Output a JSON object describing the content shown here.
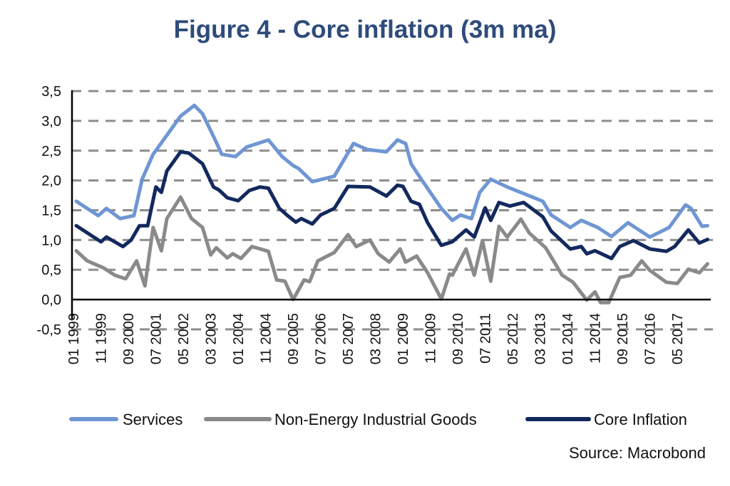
{
  "chart_data": {
    "type": "line",
    "title": "Figure 4 - Core inflation (3m ma)",
    "source": "Source: Macrobond",
    "xlabel": "",
    "ylabel": "",
    "ylim": [
      -0.5,
      3.5
    ],
    "yticks": [
      "3,5",
      "3,0",
      "2,5",
      "2,0",
      "1,5",
      "1,0",
      "0,5",
      "0,0",
      "-0,5"
    ],
    "ytick_values": [
      3.5,
      3.0,
      2.5,
      2.0,
      1.5,
      1.0,
      0.5,
      0.0,
      -0.5
    ],
    "xlim": [
      "1999-01",
      "2018-03"
    ],
    "xticks": [
      {
        "date": "1999-01",
        "label": "01 1999"
      },
      {
        "date": "1999-11",
        "label": "11 1999"
      },
      {
        "date": "2000-09",
        "label": "09 2000"
      },
      {
        "date": "2001-07",
        "label": "07 2001"
      },
      {
        "date": "2002-05",
        "label": "05 2002"
      },
      {
        "date": "2003-03",
        "label": "03 2003"
      },
      {
        "date": "2004-01",
        "label": "01 2004"
      },
      {
        "date": "2004-11",
        "label": "11 2004"
      },
      {
        "date": "2005-09",
        "label": "09 2005"
      },
      {
        "date": "2006-07",
        "label": "07 2006"
      },
      {
        "date": "2007-05",
        "label": "05 2007"
      },
      {
        "date": "2008-03",
        "label": "03 2008"
      },
      {
        "date": "2009-01",
        "label": "01 2009"
      },
      {
        "date": "2009-11",
        "label": "11 2009"
      },
      {
        "date": "2010-09",
        "label": "09 2010"
      },
      {
        "date": "2011-07",
        "label": "07 2011"
      },
      {
        "date": "2012-05",
        "label": "05 2012"
      },
      {
        "date": "2013-03",
        "label": "03 2013"
      },
      {
        "date": "2014-01",
        "label": "01 2014"
      },
      {
        "date": "2014-11",
        "label": "11 2014"
      },
      {
        "date": "2015-09",
        "label": "09 2015"
      },
      {
        "date": "2016-07",
        "label": "07 2016"
      },
      {
        "date": "2017-05",
        "label": "05 2017"
      }
    ],
    "grid": "horizontal dashed",
    "legend_position": "bottom",
    "series": [
      {
        "name": "Services",
        "color": "#6f96d4",
        "points": [
          [
            "1999-01",
            1.65
          ],
          [
            "1999-09",
            1.41
          ],
          [
            "1999-12",
            1.53
          ],
          [
            "2000-05",
            1.36
          ],
          [
            "2000-10",
            1.41
          ],
          [
            "2001-01",
            2.02
          ],
          [
            "2001-05",
            2.44
          ],
          [
            "2001-10",
            2.76
          ],
          [
            "2002-03",
            3.08
          ],
          [
            "2002-08",
            3.26
          ],
          [
            "2002-11",
            3.12
          ],
          [
            "2003-03",
            2.74
          ],
          [
            "2003-06",
            2.44
          ],
          [
            "2003-11",
            2.4
          ],
          [
            "2004-03",
            2.56
          ],
          [
            "2004-11",
            2.68
          ],
          [
            "2005-04",
            2.4
          ],
          [
            "2005-08",
            2.25
          ],
          [
            "2005-10",
            2.2
          ],
          [
            "2006-03",
            1.98
          ],
          [
            "2006-11",
            2.07
          ],
          [
            "2007-06",
            2.62
          ],
          [
            "2007-11",
            2.52
          ],
          [
            "2008-06",
            2.48
          ],
          [
            "2008-10",
            2.68
          ],
          [
            "2009-01",
            2.62
          ],
          [
            "2009-03",
            2.28
          ],
          [
            "2009-07",
            2.0
          ],
          [
            "2010-02",
            1.53
          ],
          [
            "2010-06",
            1.33
          ],
          [
            "2010-09",
            1.42
          ],
          [
            "2011-01",
            1.36
          ],
          [
            "2011-04",
            1.8
          ],
          [
            "2011-08",
            2.02
          ],
          [
            "2012-02",
            1.89
          ],
          [
            "2012-08",
            1.78
          ],
          [
            "2013-03",
            1.65
          ],
          [
            "2013-06",
            1.42
          ],
          [
            "2014-01",
            1.21
          ],
          [
            "2014-05",
            1.33
          ],
          [
            "2014-11",
            1.21
          ],
          [
            "2015-04",
            1.06
          ],
          [
            "2015-10",
            1.29
          ],
          [
            "2016-06",
            1.05
          ],
          [
            "2017-01",
            1.21
          ],
          [
            "2017-07",
            1.59
          ],
          [
            "2017-09",
            1.53
          ],
          [
            "2018-01",
            1.23
          ],
          [
            "2018-03",
            1.24
          ]
        ]
      },
      {
        "name": "Non-Energy Industrial Goods",
        "color": "#8a8a8a",
        "points": [
          [
            "1999-01",
            0.82
          ],
          [
            "1999-05",
            0.65
          ],
          [
            "1999-11",
            0.53
          ],
          [
            "2000-03",
            0.41
          ],
          [
            "2000-07",
            0.35
          ],
          [
            "2000-11",
            0.65
          ],
          [
            "2001-02",
            0.23
          ],
          [
            "2001-05",
            1.21
          ],
          [
            "2001-08",
            0.82
          ],
          [
            "2001-10",
            1.36
          ],
          [
            "2002-03",
            1.72
          ],
          [
            "2002-07",
            1.36
          ],
          [
            "2002-11",
            1.21
          ],
          [
            "2003-02",
            0.75
          ],
          [
            "2003-04",
            0.87
          ],
          [
            "2003-08",
            0.7
          ],
          [
            "2003-10",
            0.77
          ],
          [
            "2004-01",
            0.69
          ],
          [
            "2004-05",
            0.89
          ],
          [
            "2004-11",
            0.81
          ],
          [
            "2005-02",
            0.33
          ],
          [
            "2005-05",
            0.31
          ],
          [
            "2005-08",
            0.0
          ],
          [
            "2005-12",
            0.33
          ],
          [
            "2006-02",
            0.3
          ],
          [
            "2006-05",
            0.65
          ],
          [
            "2006-11",
            0.79
          ],
          [
            "2007-04",
            1.09
          ],
          [
            "2007-07",
            0.89
          ],
          [
            "2007-12",
            1.0
          ],
          [
            "2008-03",
            0.77
          ],
          [
            "2008-07",
            0.63
          ],
          [
            "2008-11",
            0.85
          ],
          [
            "2009-01",
            0.63
          ],
          [
            "2009-05",
            0.73
          ],
          [
            "2009-09",
            0.45
          ],
          [
            "2010-02",
            0.01
          ],
          [
            "2010-05",
            0.43
          ],
          [
            "2010-06",
            0.41
          ],
          [
            "2010-11",
            0.85
          ],
          [
            "2011-02",
            0.41
          ],
          [
            "2011-05",
            0.99
          ],
          [
            "2011-08",
            0.31
          ],
          [
            "2011-11",
            1.23
          ],
          [
            "2012-02",
            1.05
          ],
          [
            "2012-07",
            1.35
          ],
          [
            "2012-10",
            1.12
          ],
          [
            "2013-04",
            0.87
          ],
          [
            "2013-10",
            0.41
          ],
          [
            "2014-02",
            0.29
          ],
          [
            "2014-07",
            -0.01
          ],
          [
            "2014-10",
            0.13
          ],
          [
            "2014-12",
            -0.05
          ],
          [
            "2015-03",
            -0.05
          ],
          [
            "2015-07",
            0.37
          ],
          [
            "2015-11",
            0.41
          ],
          [
            "2016-03",
            0.65
          ],
          [
            "2016-06",
            0.49
          ],
          [
            "2016-12",
            0.29
          ],
          [
            "2017-04",
            0.27
          ],
          [
            "2017-08",
            0.51
          ],
          [
            "2017-12",
            0.45
          ],
          [
            "2018-03",
            0.6
          ]
        ]
      },
      {
        "name": "Core Inflation",
        "color": "#13295e",
        "points": [
          [
            "1999-01",
            1.24
          ],
          [
            "1999-10",
            0.97
          ],
          [
            "1999-12",
            1.05
          ],
          [
            "2000-06",
            0.89
          ],
          [
            "2000-09",
            1.0
          ],
          [
            "2000-12",
            1.24
          ],
          [
            "2001-03",
            1.24
          ],
          [
            "2001-06",
            1.89
          ],
          [
            "2001-08",
            1.8
          ],
          [
            "2001-10",
            2.16
          ],
          [
            "2002-03",
            2.48
          ],
          [
            "2002-06",
            2.46
          ],
          [
            "2002-11",
            2.28
          ],
          [
            "2003-03",
            1.89
          ],
          [
            "2003-05",
            1.84
          ],
          [
            "2003-08",
            1.71
          ],
          [
            "2003-12",
            1.66
          ],
          [
            "2004-04",
            1.83
          ],
          [
            "2004-08",
            1.89
          ],
          [
            "2004-11",
            1.87
          ],
          [
            "2005-03",
            1.53
          ],
          [
            "2005-06",
            1.41
          ],
          [
            "2005-09",
            1.3
          ],
          [
            "2005-11",
            1.36
          ],
          [
            "2006-03",
            1.27
          ],
          [
            "2006-06",
            1.42
          ],
          [
            "2006-11",
            1.53
          ],
          [
            "2007-04",
            1.9
          ],
          [
            "2007-12",
            1.89
          ],
          [
            "2008-06",
            1.74
          ],
          [
            "2008-10",
            1.92
          ],
          [
            "2008-12",
            1.9
          ],
          [
            "2009-03",
            1.65
          ],
          [
            "2009-06",
            1.6
          ],
          [
            "2009-09",
            1.29
          ],
          [
            "2010-02",
            0.91
          ],
          [
            "2010-06",
            0.97
          ],
          [
            "2010-11",
            1.17
          ],
          [
            "2011-02",
            1.05
          ],
          [
            "2011-06",
            1.54
          ],
          [
            "2011-08",
            1.33
          ],
          [
            "2011-11",
            1.63
          ],
          [
            "2012-03",
            1.57
          ],
          [
            "2012-08",
            1.63
          ],
          [
            "2013-03",
            1.39
          ],
          [
            "2013-06",
            1.15
          ],
          [
            "2014-01",
            0.85
          ],
          [
            "2014-05",
            0.89
          ],
          [
            "2014-07",
            0.77
          ],
          [
            "2014-10",
            0.82
          ],
          [
            "2015-04",
            0.69
          ],
          [
            "2015-07",
            0.89
          ],
          [
            "2015-12",
            0.99
          ],
          [
            "2016-06",
            0.85
          ],
          [
            "2016-12",
            0.81
          ],
          [
            "2017-03",
            0.89
          ],
          [
            "2017-08",
            1.17
          ],
          [
            "2017-12",
            0.95
          ],
          [
            "2018-03",
            1.01
          ]
        ]
      }
    ]
  }
}
